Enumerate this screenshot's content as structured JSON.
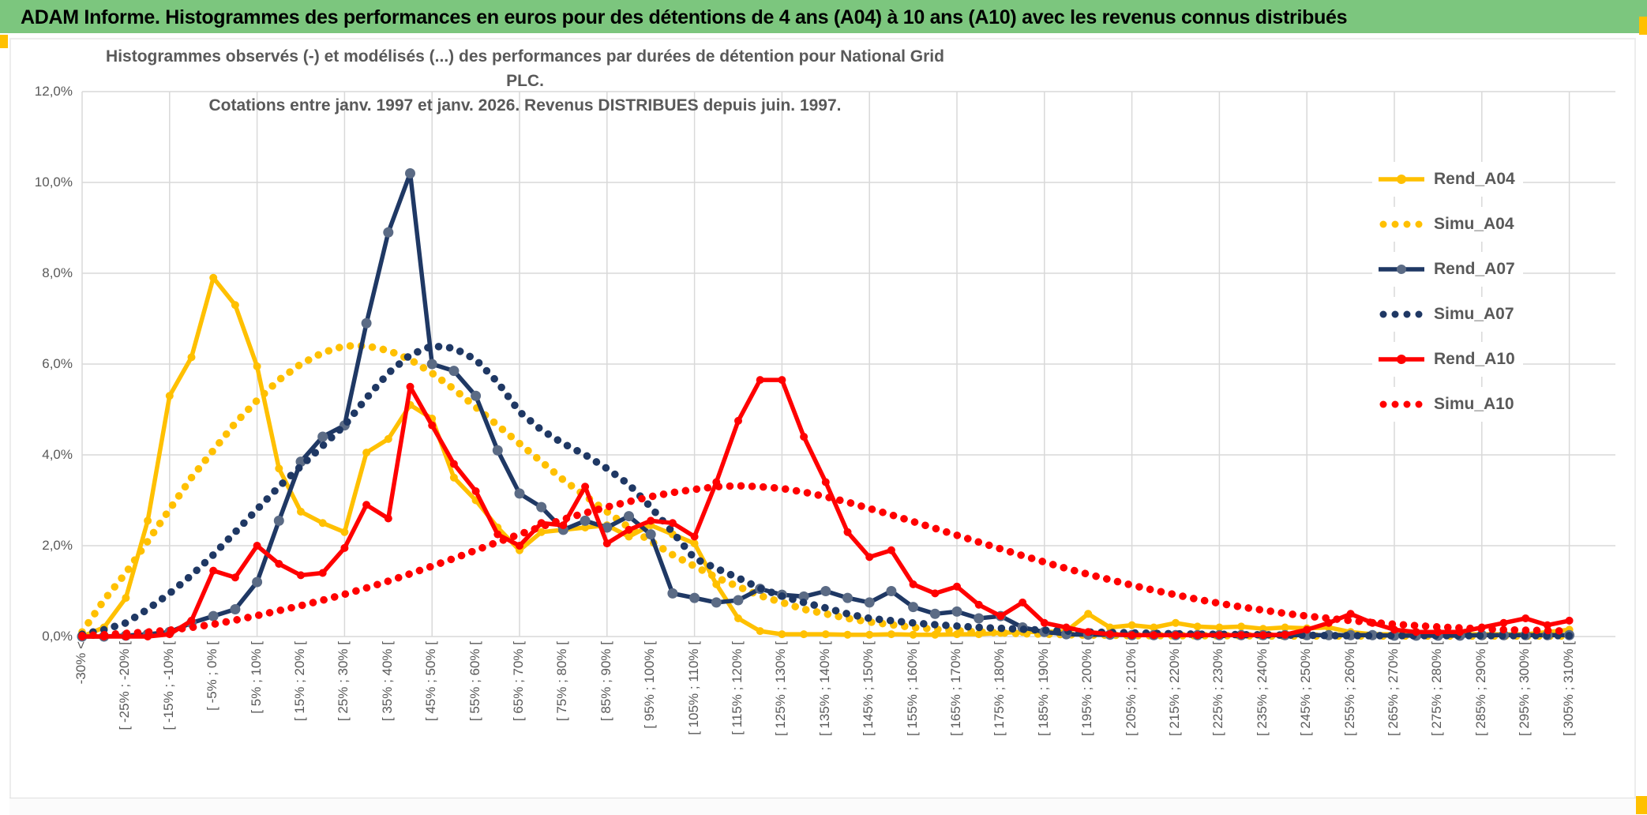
{
  "header": {
    "title": "ADAM Informe. Histogrammes des performances en euros pour des détentions de 4 ans (A04) à 10 ans (A10) avec les revenus connus distribués"
  },
  "chart": {
    "title_line1": "Histogrammes observés (-) et modélisés (...) des performances par durées de détention pour National Grid PLC.",
    "title_line2": "Cotations entre janv. 1997 et janv. 2026. Revenus DISTRIBUES depuis juin. 1997.",
    "y_ticks": [
      "0,0%",
      "2,0%",
      "4,0%",
      "6,0%",
      "8,0%",
      "10,0%",
      "12,0%"
    ]
  },
  "chart_data": {
    "type": "line",
    "title": "Histogrammes observés (-) et modélisés (...) des performances par durées de détention pour National Grid PLC. Cotations entre janv. 1997 et janv. 2026. Revenus DISTRIBUES depuis juin. 1997.",
    "xlabel": "",
    "ylabel": "",
    "ylim": [
      0,
      12
    ],
    "y_tick_step_pct": 2,
    "grid": true,
    "legend_position": "right",
    "bins": 69,
    "x_label_every": 2,
    "categories": [
      "-30% <",
      "[ -25% ; -20% [",
      "[ -15% ; -10% [",
      "[ -5% ; 0% [",
      "[ 5% ; 10% [",
      "[ 15% ; 20% [",
      "[ 25% ; 30% [",
      "[ 35% ; 40% [",
      "[ 45% ; 50% [",
      "[ 55% ; 60% [",
      "[ 65% ; 70% [",
      "[ 75% ; 80% [",
      "[ 85% ; 90% [",
      "[ 95% ; 100% [",
      "[ 105% ; 110% [",
      "[ 115% ; 120% [",
      "[ 125% ; 130% [",
      "[ 135% ; 140% [",
      "[ 145% ; 150% [",
      "[ 155% ; 160% [",
      "[ 165% ; 170% [",
      "[ 175% ; 180% [",
      "[ 185% ; 190% [",
      "[ 195% ; 200% [",
      "[ 205% ; 210% [",
      "[ 215% ; 220% [",
      "[ 225% ; 230% [",
      "[ 235% ; 240% [",
      "[ 245% ; 250% [",
      "[ 255% ; 260% [",
      "[ 265% ; 270% [",
      "[ 275% ; 280% [",
      "[ 285% ; 290% [",
      "[ 295% ; 300% [",
      "[ 305% ; 310% ["
    ],
    "series": [
      {
        "name": "Rend_A04",
        "style": "solid",
        "color": "#FFC000",
        "marker_color": "#FFC000",
        "values": [
          0,
          0.2,
          0.85,
          2.55,
          5.3,
          6.15,
          7.9,
          7.3,
          5.95,
          3.7,
          2.75,
          2.5,
          2.3,
          4.05,
          4.35,
          5.1,
          4.8,
          3.5,
          3.0,
          2.4,
          1.9,
          2.3,
          2.35,
          2.4,
          2.45,
          2.2,
          2.45,
          2.25,
          2.05,
          1.15,
          0.4,
          0.12,
          0.05,
          0.05,
          0.05,
          0.04,
          0.04,
          0.05,
          0.04,
          0.04,
          0.05,
          0.05,
          0.08,
          0.1,
          0.1,
          0.12,
          0.5,
          0.2,
          0.25,
          0.2,
          0.3,
          0.22,
          0.2,
          0.22,
          0.17,
          0.2,
          0.18,
          0.2,
          0.1,
          0.05,
          0.05,
          0.05,
          0.05,
          0.05,
          0.05,
          0.05,
          0.05,
          0.1,
          0.15
        ]
      },
      {
        "name": "Simu_A04",
        "style": "dotted",
        "color": "#FFC000",
        "values": [
          0.1,
          0.8,
          1.4,
          2.1,
          2.8,
          3.5,
          4.1,
          4.7,
          5.2,
          5.65,
          6.0,
          6.25,
          6.4,
          6.4,
          6.3,
          6.1,
          5.8,
          5.45,
          5.05,
          4.65,
          4.25,
          3.85,
          3.45,
          3.1,
          2.75,
          2.4,
          2.1,
          1.8,
          1.55,
          1.3,
          1.1,
          0.9,
          0.75,
          0.6,
          0.5,
          0.4,
          0.32,
          0.26,
          0.2,
          0.16,
          0.13,
          0.1,
          0.08,
          0.06,
          0.05,
          0.04,
          0.03,
          0.03,
          0.02,
          0.02,
          0.02,
          0.02,
          0.02,
          0.02,
          0.01,
          0.01,
          0.01,
          0.01,
          0.01,
          0.01,
          0.01,
          0.01,
          0.01,
          0.01,
          0.01,
          0.01,
          0.01,
          0.01,
          0.01
        ]
      },
      {
        "name": "Rend_A07",
        "style": "solid",
        "color": "#1F3864",
        "marker_color": "#5B6B85",
        "values": [
          0,
          0,
          0.02,
          0.05,
          0.1,
          0.3,
          0.45,
          0.6,
          1.2,
          2.55,
          3.85,
          4.4,
          4.65,
          6.9,
          8.9,
          10.2,
          6.0,
          5.85,
          5.3,
          4.1,
          3.15,
          2.85,
          2.35,
          2.55,
          2.4,
          2.65,
          2.25,
          0.95,
          0.85,
          0.75,
          0.8,
          1.05,
          0.92,
          0.88,
          1.0,
          0.85,
          0.75,
          1.0,
          0.65,
          0.5,
          0.55,
          0.4,
          0.45,
          0.2,
          0.1,
          0.05,
          0.04,
          0.04,
          0.03,
          0.03,
          0.03,
          0.03,
          0.03,
          0.03,
          0.03,
          0.03,
          0.03,
          0.03,
          0.03,
          0.03,
          0.02,
          0.02,
          0.02,
          0.02,
          0.03,
          0.03,
          0.03,
          0.03,
          0.03
        ]
      },
      {
        "name": "Simu_A07",
        "style": "dotted",
        "color": "#1F3864",
        "values": [
          0.05,
          0.15,
          0.3,
          0.6,
          0.95,
          1.35,
          1.8,
          2.3,
          2.8,
          3.3,
          3.75,
          4.2,
          4.65,
          5.25,
          5.8,
          6.2,
          6.4,
          6.35,
          6.1,
          5.6,
          4.95,
          4.55,
          4.25,
          4.0,
          3.7,
          3.35,
          2.85,
          2.3,
          1.72,
          1.5,
          1.29,
          1.06,
          0.89,
          0.75,
          0.63,
          0.5,
          0.4,
          0.35,
          0.3,
          0.26,
          0.23,
          0.2,
          0.18,
          0.16,
          0.14,
          0.12,
          0.1,
          0.09,
          0.08,
          0.07,
          0.06,
          0.05,
          0.05,
          0.04,
          0.04,
          0.03,
          0.03,
          0.02,
          0.02,
          0.02,
          0.02,
          0.02,
          0.02,
          0.02,
          0.02,
          0.02,
          0.02,
          0.02,
          0.02
        ]
      },
      {
        "name": "Rend_A10",
        "style": "solid",
        "color": "#FF0000",
        "marker_color": "#FF0000",
        "values": [
          0,
          0,
          0,
          0,
          0.05,
          0.35,
          1.45,
          1.3,
          2.0,
          1.6,
          1.35,
          1.4,
          1.95,
          2.9,
          2.6,
          5.5,
          4.65,
          3.8,
          3.2,
          2.25,
          2.0,
          2.5,
          2.45,
          3.3,
          2.05,
          2.35,
          2.55,
          2.5,
          2.2,
          3.4,
          4.75,
          5.65,
          5.65,
          4.4,
          3.4,
          2.3,
          1.75,
          1.9,
          1.15,
          0.95,
          1.1,
          0.7,
          0.45,
          0.75,
          0.3,
          0.2,
          0.1,
          0.05,
          0.03,
          0.03,
          0.03,
          0.03,
          0.03,
          0.03,
          0.03,
          0.04,
          0.15,
          0.3,
          0.5,
          0.3,
          0.15,
          0.1,
          0.1,
          0.1,
          0.2,
          0.3,
          0.4,
          0.25,
          0.35
        ]
      },
      {
        "name": "Simu_A10",
        "style": "dotted",
        "color": "#FF0000",
        "values": [
          0.02,
          0.04,
          0.07,
          0.1,
          0.14,
          0.2,
          0.27,
          0.36,
          0.46,
          0.57,
          0.68,
          0.8,
          0.93,
          1.07,
          1.22,
          1.38,
          1.55,
          1.72,
          1.9,
          2.08,
          2.25,
          2.42,
          2.58,
          2.72,
          2.85,
          2.97,
          3.08,
          3.17,
          3.24,
          3.3,
          3.32,
          3.3,
          3.26,
          3.18,
          3.08,
          2.96,
          2.82,
          2.68,
          2.53,
          2.38,
          2.23,
          2.08,
          1.93,
          1.78,
          1.64,
          1.5,
          1.37,
          1.25,
          1.13,
          1.02,
          0.92,
          0.82,
          0.73,
          0.65,
          0.58,
          0.51,
          0.45,
          0.4,
          0.35,
          0.31,
          0.27,
          0.24,
          0.21,
          0.19,
          0.17,
          0.15,
          0.14,
          0.13,
          0.12
        ]
      }
    ],
    "colors": {
      "accent": "#FFC000",
      "header_green": "#7CC67E",
      "grid": "#D9D9D9",
      "text_gray": "#595959"
    }
  }
}
